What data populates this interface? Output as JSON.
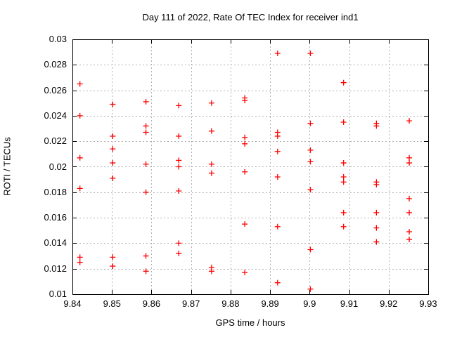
{
  "chart_data": {
    "type": "scatter",
    "title": "Day 111 of 2022, Rate Of TEC Index for receiver ind1",
    "xlabel": "GPS time / hours",
    "ylabel": "ROTI / TECUs",
    "xlim": [
      9.84,
      9.93
    ],
    "ylim": [
      0.01,
      0.03
    ],
    "xticks": [
      9.84,
      9.85,
      9.86,
      9.87,
      9.88,
      9.89,
      9.9,
      9.91,
      9.92,
      9.93
    ],
    "xtick_labels": [
      "9.84",
      "9.85",
      "9.86",
      "9.87",
      "9.88",
      "9.89",
      "9.9",
      "9.91",
      "9.92",
      "9.93"
    ],
    "yticks": [
      0.01,
      0.012,
      0.014,
      0.016,
      0.018,
      0.02,
      0.022,
      0.024,
      0.026,
      0.028,
      0.03
    ],
    "ytick_labels": [
      "0.01",
      "0.012",
      "0.014",
      "0.016",
      "0.018",
      "0.02",
      "0.022",
      "0.024",
      "0.026",
      "0.028",
      "0.03"
    ],
    "grid": true,
    "legend": "none",
    "colors": {
      "marker": "#ff0000",
      "grid": "#b0b0b0",
      "axis": "#000000",
      "background": "#ffffff"
    },
    "marker_shape": "plus",
    "series": [
      {
        "marker": "plus",
        "color": "#ff0000",
        "points": [
          [
            9.8419,
            0.0265
          ],
          [
            9.8419,
            0.024
          ],
          [
            9.8419,
            0.0207
          ],
          [
            9.8419,
            0.0183
          ],
          [
            9.8419,
            0.0129
          ],
          [
            9.8419,
            0.0125
          ],
          [
            9.8502,
            0.0249
          ],
          [
            9.8502,
            0.0224
          ],
          [
            9.8502,
            0.0214
          ],
          [
            9.8502,
            0.0203
          ],
          [
            9.8502,
            0.0191
          ],
          [
            9.8502,
            0.0129
          ],
          [
            9.8502,
            0.0122
          ],
          [
            9.8586,
            0.0251
          ],
          [
            9.8586,
            0.0232
          ],
          [
            9.8586,
            0.0227
          ],
          [
            9.8586,
            0.0202
          ],
          [
            9.8586,
            0.018
          ],
          [
            9.8586,
            0.013
          ],
          [
            9.8586,
            0.0118
          ],
          [
            9.8669,
            0.0248
          ],
          [
            9.8669,
            0.0224
          ],
          [
            9.8669,
            0.0205
          ],
          [
            9.8669,
            0.02
          ],
          [
            9.8669,
            0.0181
          ],
          [
            9.8669,
            0.014
          ],
          [
            9.8669,
            0.0132
          ],
          [
            9.8752,
            0.025
          ],
          [
            9.8752,
            0.0228
          ],
          [
            9.8752,
            0.0202
          ],
          [
            9.8752,
            0.0195
          ],
          [
            9.8752,
            0.0121
          ],
          [
            9.8752,
            0.0118
          ],
          [
            9.8836,
            0.0254
          ],
          [
            9.8836,
            0.0252
          ],
          [
            9.8836,
            0.0223
          ],
          [
            9.8836,
            0.0218
          ],
          [
            9.8836,
            0.0196
          ],
          [
            9.8836,
            0.0155
          ],
          [
            9.8836,
            0.0117
          ],
          [
            9.8919,
            0.0289
          ],
          [
            9.8919,
            0.0227
          ],
          [
            9.8919,
            0.0224
          ],
          [
            9.8919,
            0.0212
          ],
          [
            9.8919,
            0.0192
          ],
          [
            9.8919,
            0.0153
          ],
          [
            9.8919,
            0.0109
          ],
          [
            9.9002,
            0.0289
          ],
          [
            9.9002,
            0.0234
          ],
          [
            9.9002,
            0.0213
          ],
          [
            9.9002,
            0.0204
          ],
          [
            9.9002,
            0.0182
          ],
          [
            9.9002,
            0.0135
          ],
          [
            9.9002,
            0.0104
          ],
          [
            9.9086,
            0.0266
          ],
          [
            9.9086,
            0.0235
          ],
          [
            9.9086,
            0.0203
          ],
          [
            9.9086,
            0.0192
          ],
          [
            9.9086,
            0.0188
          ],
          [
            9.9086,
            0.0164
          ],
          [
            9.9086,
            0.0153
          ],
          [
            9.9169,
            0.0234
          ],
          [
            9.9169,
            0.0232
          ],
          [
            9.9169,
            0.0188
          ],
          [
            9.9169,
            0.0186
          ],
          [
            9.9169,
            0.0164
          ],
          [
            9.9169,
            0.0152
          ],
          [
            9.9169,
            0.0141
          ],
          [
            9.9252,
            0.0236
          ],
          [
            9.9252,
            0.0207
          ],
          [
            9.9252,
            0.0203
          ],
          [
            9.9252,
            0.0175
          ],
          [
            9.9252,
            0.0164
          ],
          [
            9.9252,
            0.0149
          ],
          [
            9.9252,
            0.0143
          ]
        ]
      }
    ]
  }
}
